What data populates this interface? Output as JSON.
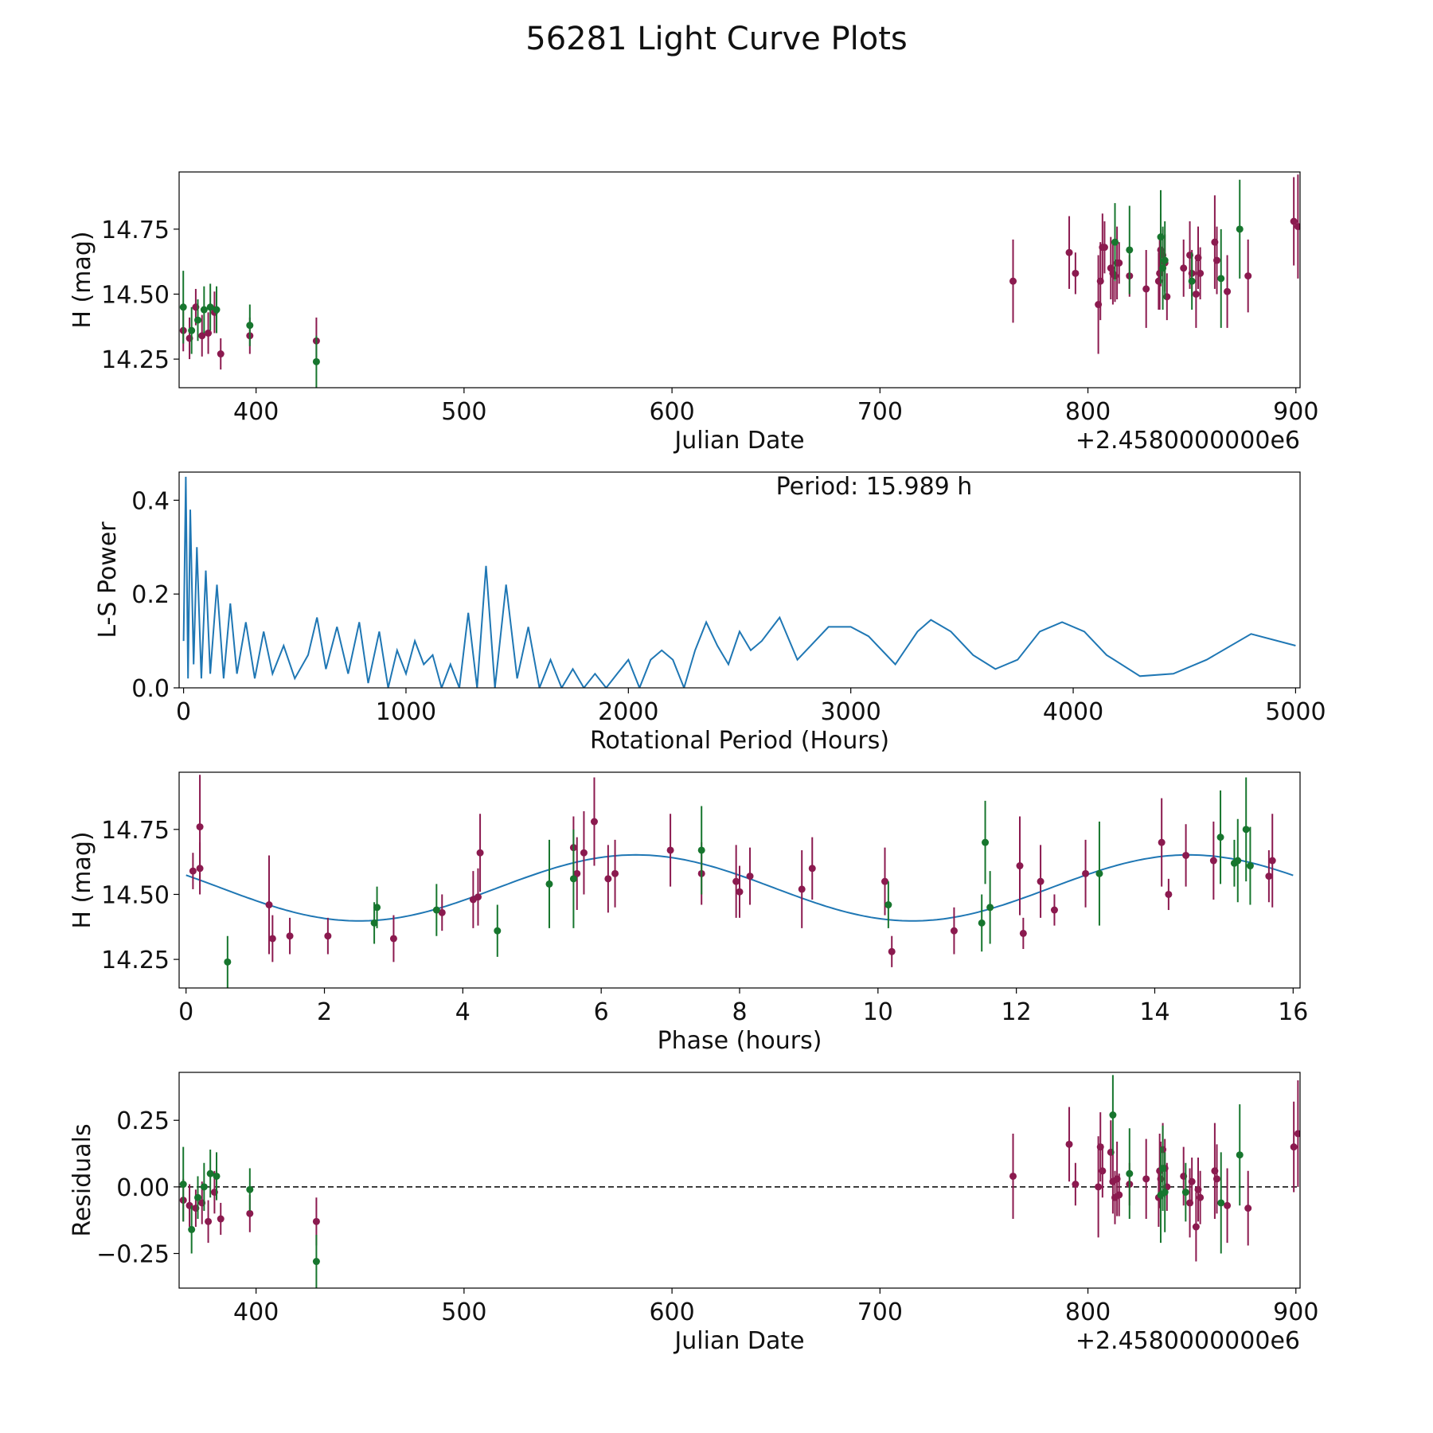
{
  "title": "56281 Light Curve Plots",
  "colors": {
    "red_band": "#8b1a4f",
    "green_band": "#17762e",
    "curve": "#1f77b4",
    "axes": "#000000",
    "zero_line": "#000000"
  },
  "chart_data": [
    {
      "id": "lightcurve",
      "type": "scatter",
      "title": "",
      "xlabel": "Julian Date",
      "ylabel": "H (mag)",
      "offset_label": "+2.4580000000e6",
      "xlim": [
        363,
        902
      ],
      "ylim": [
        14.14,
        14.97
      ],
      "xticks": [
        400,
        500,
        600,
        700,
        800,
        900
      ],
      "yticks": [
        14.25,
        14.5,
        14.75
      ],
      "ytick_labels": [
        "14.25",
        "14.50",
        "14.75"
      ],
      "series": [
        {
          "name": "red",
          "color_key": "red_band",
          "x": [
            365,
            368,
            371,
            374,
            377,
            380,
            383,
            397,
            429,
            764,
            791,
            794,
            805,
            806,
            807,
            808,
            811,
            812,
            813,
            814,
            815,
            820,
            828,
            834,
            834.5,
            835,
            836,
            837,
            838,
            846,
            849,
            850,
            852,
            853,
            854,
            861,
            862,
            867,
            877,
            899,
            901
          ],
          "y": [
            14.36,
            14.33,
            14.45,
            14.34,
            14.35,
            14.43,
            14.27,
            14.34,
            14.32,
            14.55,
            14.66,
            14.58,
            14.46,
            14.55,
            14.68,
            14.68,
            14.6,
            14.58,
            14.57,
            14.62,
            14.62,
            14.57,
            14.52,
            14.55,
            14.58,
            14.67,
            14.65,
            14.62,
            14.49,
            14.6,
            14.65,
            14.58,
            14.5,
            14.64,
            14.58,
            14.7,
            14.63,
            14.51,
            14.57,
            14.78,
            14.76
          ],
          "err": [
            0.08,
            0.08,
            0.07,
            0.08,
            0.08,
            0.08,
            0.06,
            0.07,
            0.09,
            0.16,
            0.14,
            0.08,
            0.19,
            0.15,
            0.13,
            0.1,
            0.12,
            0.12,
            0.1,
            0.14,
            0.08,
            0.08,
            0.15,
            0.11,
            0.14,
            0.14,
            0.1,
            0.11,
            0.09,
            0.11,
            0.13,
            0.09,
            0.13,
            0.12,
            0.1,
            0.18,
            0.13,
            0.14,
            0.14,
            0.17,
            0.2
          ]
        },
        {
          "name": "green",
          "color_key": "green_band",
          "x": [
            365,
            369,
            372,
            375,
            378,
            381,
            397,
            429,
            813,
            820,
            835,
            836,
            837,
            850,
            864,
            873
          ],
          "y": [
            14.45,
            14.36,
            14.4,
            14.44,
            14.45,
            14.44,
            14.38,
            14.24,
            14.7,
            14.67,
            14.72,
            14.6,
            14.63,
            14.55,
            14.56,
            14.75
          ],
          "err": [
            0.14,
            0.09,
            0.08,
            0.09,
            0.09,
            0.09,
            0.08,
            0.1,
            0.15,
            0.17,
            0.18,
            0.16,
            0.15,
            0.11,
            0.19,
            0.19
          ]
        }
      ]
    },
    {
      "id": "periodogram",
      "type": "line",
      "xlabel": "Rotational Period (Hours)",
      "ylabel": "L-S Power",
      "annotation": "Period: 15.989 h",
      "xlim": [
        -20,
        5020
      ],
      "ylim": [
        0,
        0.46
      ],
      "xticks": [
        0,
        1000,
        2000,
        3000,
        4000,
        5000
      ],
      "yticks": [
        0.0,
        0.2,
        0.4
      ],
      "ytick_labels": [
        "0.0",
        "0.2",
        "0.4"
      ],
      "color_key": "curve",
      "x": [
        0,
        10,
        20,
        30,
        45,
        60,
        80,
        100,
        120,
        150,
        180,
        210,
        240,
        280,
        320,
        360,
        400,
        450,
        500,
        560,
        600,
        640,
        690,
        740,
        790,
        830,
        880,
        920,
        960,
        1000,
        1040,
        1080,
        1120,
        1160,
        1200,
        1240,
        1280,
        1320,
        1360,
        1400,
        1450,
        1500,
        1550,
        1600,
        1650,
        1700,
        1750,
        1800,
        1850,
        1900,
        1950,
        2000,
        2050,
        2100,
        2150,
        2200,
        2250,
        2300,
        2350,
        2400,
        2450,
        2500,
        2550,
        2600,
        2680,
        2760,
        2840,
        2900,
        3000,
        3080,
        3200,
        3300,
        3360,
        3450,
        3550,
        3650,
        3750,
        3850,
        3950,
        4050,
        4150,
        4300,
        4450,
        4600,
        4800,
        5000
      ],
      "y": [
        0.1,
        0.45,
        0.02,
        0.38,
        0.05,
        0.3,
        0.02,
        0.25,
        0.03,
        0.22,
        0.02,
        0.18,
        0.03,
        0.14,
        0.02,
        0.12,
        0.03,
        0.09,
        0.02,
        0.07,
        0.15,
        0.04,
        0.13,
        0.03,
        0.14,
        0.01,
        0.12,
        0.0,
        0.08,
        0.03,
        0.1,
        0.05,
        0.07,
        0.0,
        0.05,
        0.0,
        0.16,
        0.0,
        0.26,
        0.0,
        0.22,
        0.02,
        0.13,
        0.0,
        0.06,
        0.0,
        0.04,
        0.0,
        0.03,
        0.0,
        0.03,
        0.06,
        0.0,
        0.06,
        0.08,
        0.06,
        0.0,
        0.08,
        0.14,
        0.09,
        0.05,
        0.12,
        0.08,
        0.1,
        0.15,
        0.06,
        0.1,
        0.13,
        0.13,
        0.11,
        0.05,
        0.12,
        0.145,
        0.12,
        0.07,
        0.04,
        0.06,
        0.12,
        0.14,
        0.12,
        0.07,
        0.025,
        0.03,
        0.06,
        0.115,
        0.09
      ]
    },
    {
      "id": "phased",
      "type": "scatter",
      "xlabel": "Phase (hours)",
      "ylabel": "H (mag)",
      "xlim": [
        -0.1,
        16.1
      ],
      "ylim": [
        14.14,
        14.97
      ],
      "xticks": [
        0,
        2,
        4,
        6,
        8,
        10,
        12,
        14,
        16
      ],
      "yticks": [
        14.25,
        14.5,
        14.75
      ],
      "ytick_labels": [
        "14.25",
        "14.50",
        "14.75"
      ],
      "model": {
        "mean": 14.525,
        "amplitude": 0.127,
        "period": 7.995,
        "peak_phase": 6.5
      },
      "series": [
        {
          "name": "red",
          "color_key": "red_band",
          "x": [
            0.1,
            0.2,
            0.2,
            1.2,
            1.25,
            1.5,
            2.05,
            3.0,
            3.7,
            4.15,
            4.22,
            4.25,
            5.6,
            5.65,
            5.75,
            5.9,
            6.1,
            6.2,
            7.0,
            7.45,
            7.95,
            8.0,
            8.15,
            8.9,
            9.05,
            10.1,
            10.2,
            11.1,
            12.05,
            12.1,
            12.35,
            12.55,
            13.0,
            14.1,
            14.2,
            14.45,
            14.85,
            15.65,
            15.7
          ],
          "y": [
            14.59,
            14.76,
            14.6,
            14.46,
            14.33,
            14.34,
            14.34,
            14.33,
            14.43,
            14.48,
            14.49,
            14.66,
            14.68,
            14.58,
            14.66,
            14.78,
            14.56,
            14.58,
            14.67,
            14.58,
            14.55,
            14.51,
            14.57,
            14.52,
            14.6,
            14.55,
            14.28,
            14.36,
            14.61,
            14.35,
            14.55,
            14.44,
            14.58,
            14.7,
            14.5,
            14.65,
            14.63,
            14.57,
            14.63
          ],
          "err": [
            0.07,
            0.2,
            0.1,
            0.19,
            0.09,
            0.07,
            0.07,
            0.09,
            0.07,
            0.11,
            0.11,
            0.15,
            0.12,
            0.14,
            0.16,
            0.17,
            0.13,
            0.13,
            0.14,
            0.12,
            0.14,
            0.1,
            0.11,
            0.15,
            0.12,
            0.13,
            0.06,
            0.09,
            0.19,
            0.06,
            0.14,
            0.06,
            0.13,
            0.17,
            0.06,
            0.12,
            0.15,
            0.1,
            0.18
          ]
        },
        {
          "name": "green",
          "color_key": "green_band",
          "x": [
            0.6,
            2.72,
            2.76,
            3.62,
            4.5,
            5.25,
            5.6,
            7.45,
            10.15,
            11.5,
            11.55,
            11.62,
            13.2,
            14.95,
            15.15,
            15.2,
            15.32,
            15.38
          ],
          "y": [
            14.24,
            14.39,
            14.45,
            14.44,
            14.36,
            14.54,
            14.56,
            14.67,
            14.46,
            14.39,
            14.7,
            14.45,
            14.58,
            14.72,
            14.62,
            14.63,
            14.75,
            14.61
          ],
          "err": [
            0.1,
            0.08,
            0.08,
            0.1,
            0.1,
            0.17,
            0.19,
            0.17,
            0.09,
            0.11,
            0.16,
            0.14,
            0.2,
            0.18,
            0.09,
            0.16,
            0.2,
            0.15
          ]
        }
      ]
    },
    {
      "id": "residuals",
      "type": "scatter",
      "xlabel": "Julian Date",
      "ylabel": "Residuals",
      "offset_label": "+2.4580000000e6",
      "xlim": [
        363,
        902
      ],
      "ylim": [
        -0.38,
        0.43
      ],
      "xticks": [
        400,
        500,
        600,
        700,
        800,
        900
      ],
      "yticks": [
        0.25,
        0.0,
        -0.25
      ],
      "ytick_labels": [
        "0.25",
        "0.00",
        "−0.25"
      ],
      "zero_line": 0.0,
      "series": [
        {
          "name": "red",
          "color_key": "red_band",
          "x": [
            365,
            368,
            371,
            374,
            377,
            380,
            383,
            397,
            429,
            764,
            791,
            794,
            805,
            806,
            807,
            811,
            812,
            813,
            814,
            815,
            820,
            828,
            834,
            834.5,
            835,
            836,
            837,
            838,
            846,
            849,
            850,
            852,
            853,
            854,
            861,
            862,
            867,
            877,
            899,
            901
          ],
          "y": [
            -0.05,
            -0.07,
            -0.08,
            -0.06,
            -0.13,
            -0.02,
            -0.12,
            -0.1,
            -0.13,
            0.04,
            0.16,
            0.01,
            0.0,
            0.15,
            0.06,
            0.13,
            0.02,
            -0.04,
            0.03,
            -0.03,
            0.01,
            0.03,
            -0.04,
            0.06,
            0.03,
            0.14,
            0.07,
            0.0,
            0.04,
            -0.06,
            0.02,
            -0.15,
            -0.01,
            -0.04,
            0.06,
            0.03,
            -0.07,
            -0.08,
            0.15,
            0.2
          ],
          "err": [
            0.08,
            0.08,
            0.07,
            0.08,
            0.08,
            0.08,
            0.06,
            0.07,
            0.09,
            0.16,
            0.14,
            0.08,
            0.19,
            0.13,
            0.1,
            0.12,
            0.12,
            0.1,
            0.14,
            0.08,
            0.08,
            0.15,
            0.11,
            0.14,
            0.14,
            0.1,
            0.11,
            0.09,
            0.11,
            0.13,
            0.09,
            0.13,
            0.12,
            0.1,
            0.18,
            0.13,
            0.14,
            0.14,
            0.17,
            0.2
          ]
        },
        {
          "name": "green",
          "color_key": "green_band",
          "x": [
            365,
            369,
            372,
            375,
            378,
            381,
            397,
            429,
            812,
            820,
            835,
            836,
            837,
            847,
            864,
            873
          ],
          "y": [
            0.01,
            -0.16,
            -0.04,
            0.0,
            0.05,
            0.04,
            -0.01,
            -0.28,
            0.27,
            0.05,
            -0.03,
            0.07,
            -0.02,
            -0.02,
            -0.06,
            0.12
          ],
          "err": [
            0.14,
            0.09,
            0.08,
            0.09,
            0.09,
            0.09,
            0.08,
            0.1,
            0.15,
            0.17,
            0.18,
            0.16,
            0.15,
            0.11,
            0.19,
            0.19
          ]
        }
      ]
    }
  ]
}
